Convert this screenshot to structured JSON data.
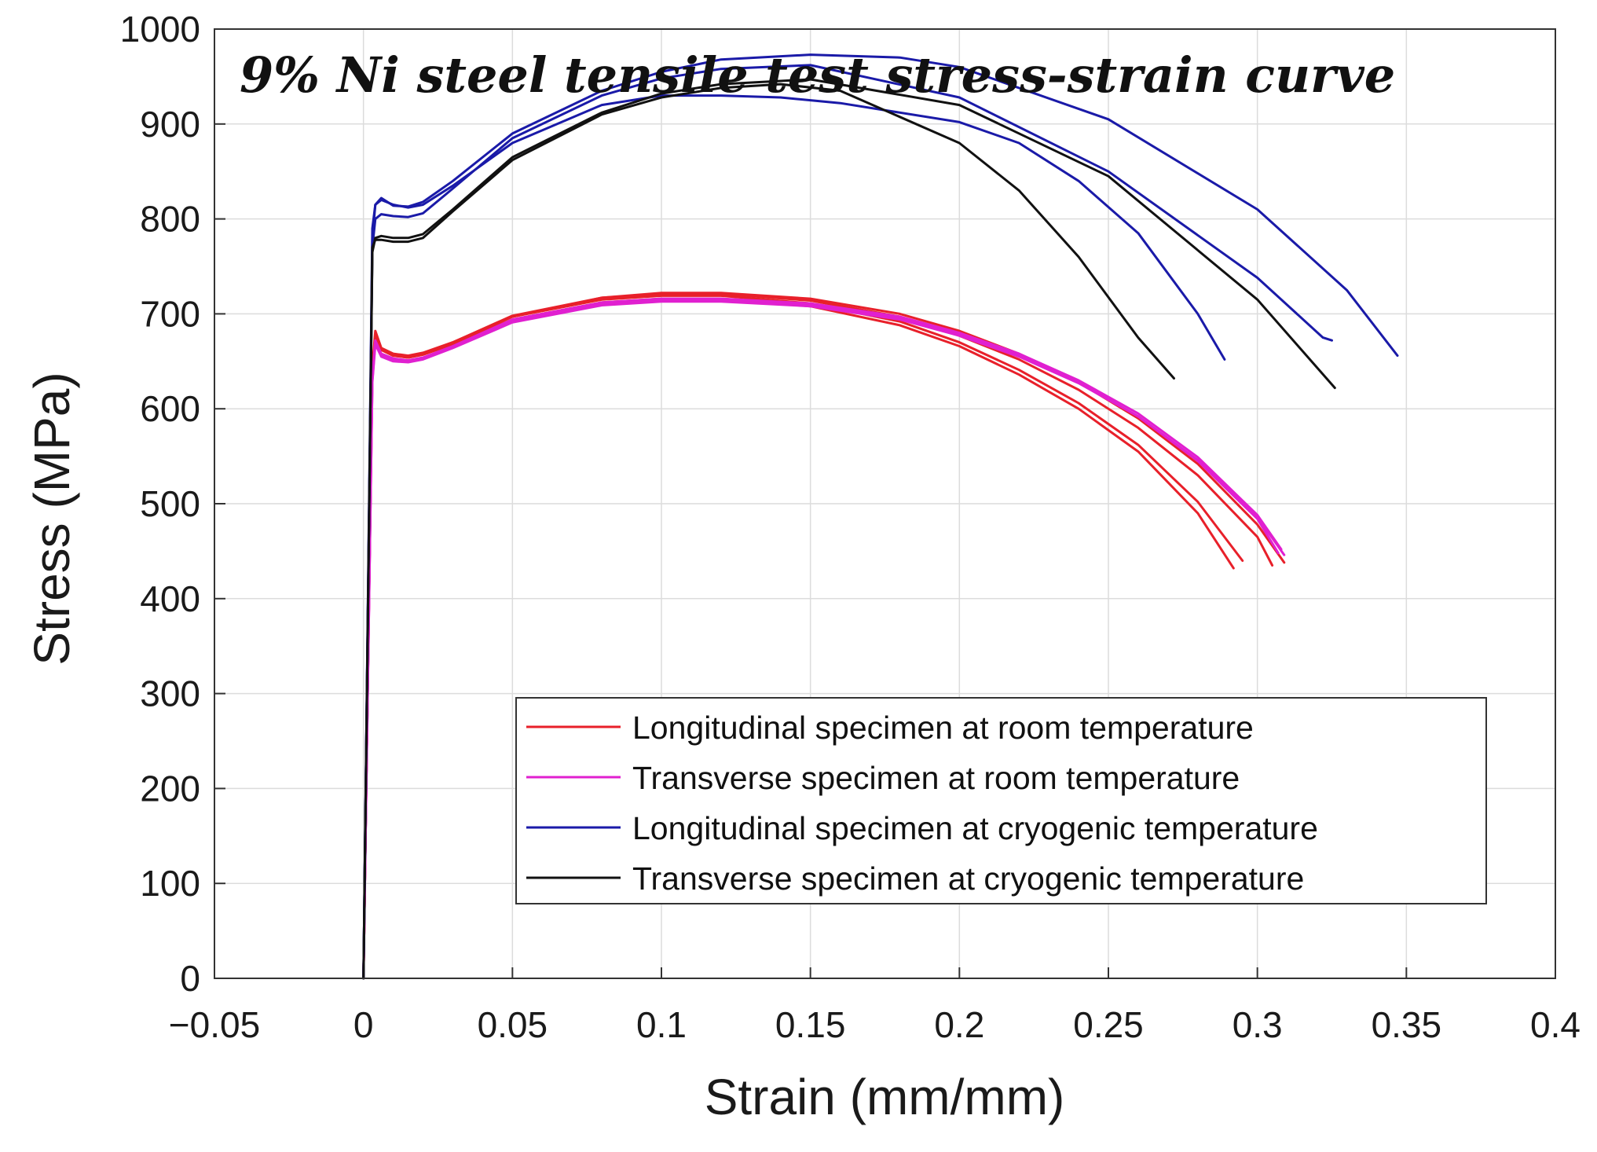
{
  "chart_data": {
    "type": "line",
    "title": "9% Ni steel tensile test stress-strain curve",
    "xlabel": "Strain (mm/mm)",
    "ylabel": "Stress (MPa)",
    "xlim": [
      -0.05,
      0.4
    ],
    "ylim": [
      0,
      1000
    ],
    "x_ticks": [
      -0.05,
      0,
      0.05,
      0.1,
      0.15,
      0.2,
      0.25,
      0.3,
      0.35,
      0.4
    ],
    "x_tick_labels": [
      "−0.05",
      "0",
      "0.05",
      "0.1",
      "0.15",
      "0.2",
      "0.25",
      "0.3",
      "0.35",
      "0.4"
    ],
    "y_ticks": [
      0,
      100,
      200,
      300,
      400,
      500,
      600,
      700,
      800,
      900,
      1000
    ],
    "y_tick_labels": [
      "0",
      "100",
      "200",
      "300",
      "400",
      "500",
      "600",
      "700",
      "800",
      "900",
      "1000"
    ],
    "grid": true,
    "legend_position": "bottom-right",
    "legend": [
      {
        "label": "Longitudinal specimen at room temperature",
        "color": "#e8202a"
      },
      {
        "label": "Transverse specimen at room temperature",
        "color": "#e020d0"
      },
      {
        "label": "Longitudinal specimen at cryogenic temperature",
        "color": "#1a1aa8"
      },
      {
        "label": "Transverse specimen at cryogenic temperature",
        "color": "#111111"
      }
    ],
    "series": [
      {
        "name": "Longitudinal specimen at room temperature",
        "color": "#e8202a",
        "x": [
          0,
          0.003,
          0.004,
          0.006,
          0.01,
          0.015,
          0.02,
          0.03,
          0.05,
          0.08,
          0.1,
          0.12,
          0.15,
          0.18,
          0.2,
          0.22,
          0.24,
          0.26,
          0.28,
          0.292
        ],
        "y": [
          0,
          640,
          675,
          662,
          656,
          654,
          657,
          668,
          694,
          712,
          716,
          716,
          708,
          688,
          666,
          636,
          600,
          555,
          490,
          432
        ]
      },
      {
        "name": "Longitudinal specimen at room temperature",
        "color": "#e8202a",
        "x": [
          0,
          0.003,
          0.004,
          0.006,
          0.01,
          0.015,
          0.02,
          0.03,
          0.05,
          0.08,
          0.1,
          0.12,
          0.15,
          0.18,
          0.2,
          0.22,
          0.24,
          0.26,
          0.28,
          0.295
        ],
        "y": [
          0,
          645,
          682,
          664,
          658,
          656,
          659,
          670,
          697,
          715,
          719,
          719,
          711,
          692,
          670,
          641,
          606,
          562,
          502,
          440
        ]
      },
      {
        "name": "Longitudinal specimen at room temperature",
        "color": "#e8202a",
        "x": [
          0,
          0.003,
          0.004,
          0.006,
          0.01,
          0.015,
          0.02,
          0.03,
          0.05,
          0.08,
          0.1,
          0.12,
          0.15,
          0.18,
          0.2,
          0.22,
          0.24,
          0.26,
          0.28,
          0.3,
          0.305
        ],
        "y": [
          0,
          642,
          678,
          663,
          657,
          655,
          658,
          670,
          698,
          717,
          721,
          721,
          714,
          697,
          677,
          652,
          620,
          580,
          530,
          465,
          435
        ]
      },
      {
        "name": "Longitudinal specimen at room temperature",
        "color": "#e8202a",
        "x": [
          0,
          0.003,
          0.004,
          0.006,
          0.01,
          0.015,
          0.02,
          0.03,
          0.05,
          0.08,
          0.1,
          0.12,
          0.15,
          0.18,
          0.2,
          0.22,
          0.24,
          0.26,
          0.28,
          0.3,
          0.309
        ],
        "y": [
          0,
          640,
          676,
          662,
          656,
          654,
          657,
          669,
          697,
          717,
          722,
          722,
          716,
          700,
          682,
          658,
          628,
          590,
          542,
          478,
          438
        ]
      },
      {
        "name": "Transverse specimen at room temperature",
        "color": "#e020d0",
        "x": [
          0,
          0.003,
          0.004,
          0.006,
          0.01,
          0.015,
          0.02,
          0.03,
          0.05,
          0.08,
          0.1,
          0.12,
          0.15,
          0.18,
          0.2,
          0.22,
          0.24,
          0.26,
          0.28,
          0.3,
          0.307
        ],
        "y": [
          0,
          630,
          670,
          656,
          652,
          650,
          653,
          665,
          692,
          710,
          714,
          714,
          709,
          695,
          678,
          656,
          628,
          592,
          545,
          484,
          448
        ]
      },
      {
        "name": "Transverse specimen at room temperature",
        "color": "#e020d0",
        "x": [
          0,
          0.003,
          0.004,
          0.006,
          0.01,
          0.015,
          0.02,
          0.03,
          0.05,
          0.08,
          0.1,
          0.12,
          0.15,
          0.18,
          0.2,
          0.22,
          0.24,
          0.26,
          0.28,
          0.3,
          0.308
        ],
        "y": [
          0,
          632,
          672,
          658,
          653,
          651,
          654,
          666,
          694,
          712,
          716,
          716,
          711,
          697,
          680,
          658,
          630,
          595,
          549,
          488,
          452
        ]
      },
      {
        "name": "Transverse specimen at room temperature",
        "color": "#e020d0",
        "x": [
          0,
          0.003,
          0.004,
          0.006,
          0.01,
          0.015,
          0.02,
          0.03,
          0.05,
          0.08,
          0.1,
          0.12,
          0.15,
          0.18,
          0.2,
          0.22,
          0.24,
          0.26,
          0.28,
          0.3,
          0.309
        ],
        "y": [
          0,
          628,
          668,
          655,
          650,
          649,
          652,
          664,
          691,
          709,
          713,
          713,
          708,
          694,
          677,
          655,
          627,
          592,
          546,
          486,
          446
        ]
      },
      {
        "name": "Longitudinal specimen at cryogenic temperature",
        "color": "#1a1aa8",
        "x": [
          0,
          0.003,
          0.004,
          0.006,
          0.01,
          0.015,
          0.02,
          0.03,
          0.05,
          0.08,
          0.1,
          0.12,
          0.14,
          0.16,
          0.2,
          0.22,
          0.24,
          0.26,
          0.28,
          0.289
        ],
        "y": [
          0,
          780,
          815,
          820,
          815,
          812,
          815,
          835,
          880,
          920,
          930,
          930,
          928,
          922,
          902,
          880,
          840,
          785,
          700,
          652
        ]
      },
      {
        "name": "Longitudinal specimen at cryogenic temperature",
        "color": "#1a1aa8",
        "x": [
          0,
          0.003,
          0.004,
          0.006,
          0.01,
          0.015,
          0.02,
          0.03,
          0.05,
          0.08,
          0.1,
          0.12,
          0.15,
          0.2,
          0.25,
          0.3,
          0.322,
          0.325
        ],
        "y": [
          0,
          770,
          800,
          805,
          803,
          802,
          806,
          832,
          885,
          930,
          948,
          958,
          962,
          928,
          850,
          738,
          675,
          672
        ]
      },
      {
        "name": "Longitudinal specimen at cryogenic temperature",
        "color": "#1a1aa8",
        "x": [
          0,
          0.003,
          0.004,
          0.006,
          0.01,
          0.015,
          0.02,
          0.03,
          0.05,
          0.08,
          0.1,
          0.12,
          0.15,
          0.18,
          0.2,
          0.25,
          0.3,
          0.33,
          0.347
        ],
        "y": [
          0,
          790,
          815,
          822,
          814,
          813,
          818,
          840,
          890,
          935,
          955,
          968,
          973,
          970,
          960,
          905,
          810,
          725,
          656
        ]
      },
      {
        "name": "Transverse specimen at cryogenic temperature",
        "color": "#111111",
        "x": [
          0,
          0.003,
          0.004,
          0.006,
          0.01,
          0.015,
          0.02,
          0.03,
          0.05,
          0.08,
          0.1,
          0.12,
          0.14,
          0.16,
          0.2,
          0.22,
          0.24,
          0.26,
          0.272
        ],
        "y": [
          0,
          770,
          778,
          778,
          776,
          776,
          780,
          808,
          862,
          910,
          928,
          938,
          942,
          935,
          880,
          830,
          760,
          675,
          632
        ]
      },
      {
        "name": "Transverse specimen at cryogenic temperature",
        "color": "#111111",
        "x": [
          0,
          0.003,
          0.004,
          0.006,
          0.01,
          0.015,
          0.02,
          0.03,
          0.05,
          0.08,
          0.1,
          0.12,
          0.15,
          0.2,
          0.25,
          0.3,
          0.326
        ],
        "y": [
          0,
          765,
          780,
          782,
          780,
          780,
          784,
          810,
          865,
          912,
          932,
          942,
          947,
          920,
          845,
          715,
          622
        ]
      }
    ]
  }
}
